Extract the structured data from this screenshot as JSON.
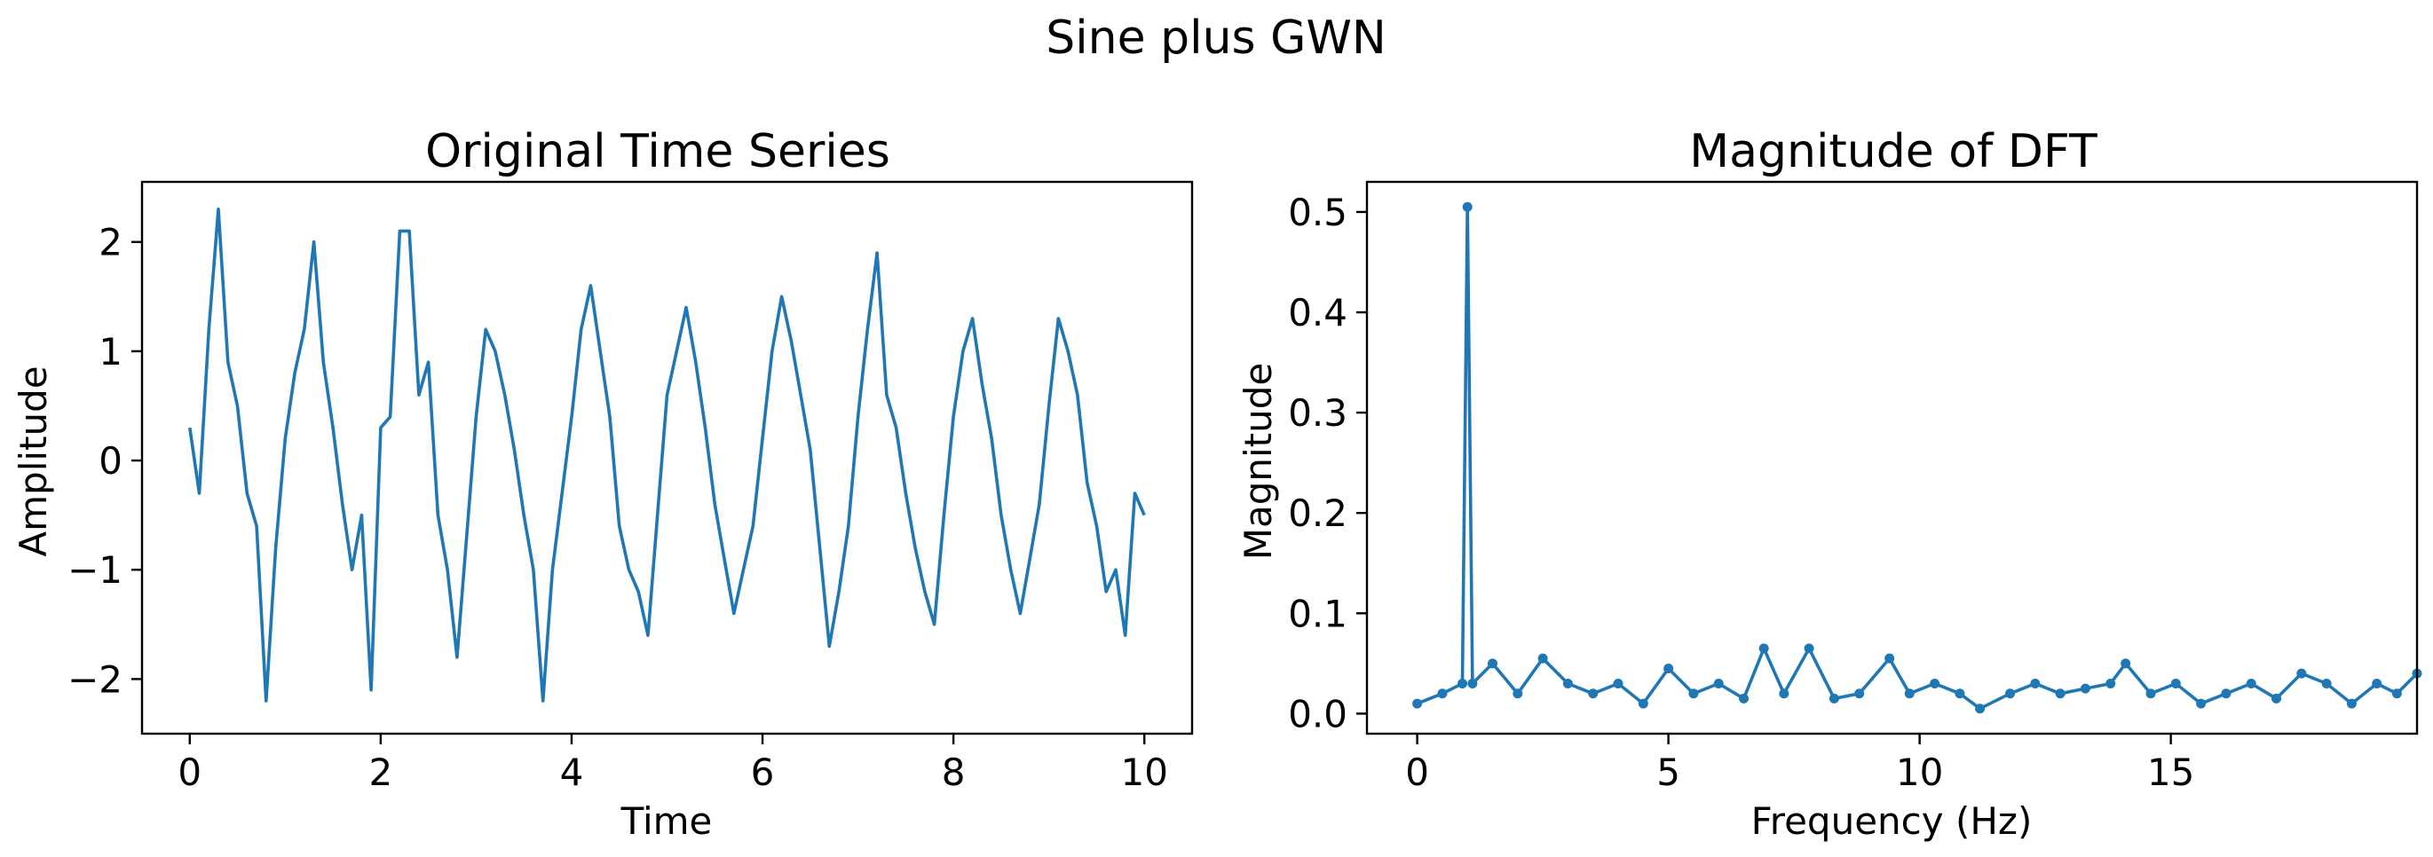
{
  "figure": {
    "suptitle": "Sine plus GWN"
  },
  "colors": {
    "line": "#1f77b4",
    "axes": "#000000",
    "background": "#ffffff"
  },
  "chart_data": [
    {
      "type": "line",
      "title": "Original Time Series",
      "xlabel": "Time",
      "ylabel": "Amplitude",
      "xlim": [
        -0.5,
        10.5
      ],
      "ylim": [
        -2.5,
        2.55
      ],
      "xticks": [
        0,
        2,
        4,
        6,
        8,
        10
      ],
      "xtick_labels": [
        "0",
        "2",
        "4",
        "6",
        "8",
        "10"
      ],
      "yticks": [
        -2,
        -1,
        0,
        1,
        2
      ],
      "ytick_labels": [
        "−2",
        "−1",
        "0",
        "1",
        "2"
      ],
      "grid": false,
      "series": [
        {
          "x": [
            0.0,
            0.1,
            0.2,
            0.3,
            0.4,
            0.5,
            0.6,
            0.7,
            0.8,
            0.9,
            1.0,
            1.1,
            1.2,
            1.3,
            1.4,
            1.5,
            1.6,
            1.7,
            1.8,
            1.9,
            2.0,
            2.1,
            2.2,
            2.3,
            2.4,
            2.5,
            2.6,
            2.7,
            2.8,
            2.9,
            3.0,
            3.1,
            3.2,
            3.3,
            3.4,
            3.5,
            3.6,
            3.7,
            3.8,
            3.9,
            4.0,
            4.1,
            4.2,
            4.3,
            4.4,
            4.5,
            4.6,
            4.7,
            4.8,
            4.9,
            5.0,
            5.1,
            5.2,
            5.3,
            5.4,
            5.5,
            5.6,
            5.7,
            5.8,
            5.9,
            6.0,
            6.1,
            6.2,
            6.3,
            6.4,
            6.5,
            6.6,
            6.7,
            6.8,
            6.9,
            7.0,
            7.1,
            7.2,
            7.3,
            7.4,
            7.5,
            7.6,
            7.7,
            7.8,
            7.9,
            8.0,
            8.1,
            8.2,
            8.3,
            8.4,
            8.5,
            8.6,
            8.7,
            8.8,
            8.9,
            9.0,
            9.1,
            9.2,
            9.3,
            9.4,
            9.5,
            9.6,
            9.7,
            9.8,
            9.9,
            10.0
          ],
          "y": [
            0.3,
            -0.3,
            1.2,
            2.3,
            0.9,
            0.5,
            -0.3,
            -0.6,
            -2.2,
            -0.8,
            0.2,
            0.8,
            1.2,
            2.0,
            0.9,
            0.3,
            -0.4,
            -1.0,
            -0.5,
            -2.1,
            0.3,
            0.4,
            2.1,
            2.1,
            0.6,
            0.9,
            -0.5,
            -1.0,
            -1.8,
            -0.7,
            0.4,
            1.2,
            1.0,
            0.6,
            0.1,
            -0.5,
            -1.0,
            -2.2,
            -1.0,
            -0.3,
            0.4,
            1.2,
            1.6,
            1.0,
            0.4,
            -0.6,
            -1.0,
            -1.2,
            -1.6,
            -0.5,
            0.6,
            1.0,
            1.4,
            0.9,
            0.3,
            -0.4,
            -0.9,
            -1.4,
            -1.0,
            -0.6,
            0.2,
            1.0,
            1.5,
            1.1,
            0.6,
            0.1,
            -0.8,
            -1.7,
            -1.2,
            -0.6,
            0.4,
            1.2,
            1.9,
            0.6,
            0.3,
            -0.3,
            -0.8,
            -1.2,
            -1.5,
            -0.5,
            0.4,
            1.0,
            1.3,
            0.7,
            0.2,
            -0.5,
            -1.0,
            -1.4,
            -0.9,
            -0.4,
            0.5,
            1.3,
            1.0,
            0.6,
            -0.2,
            -0.6,
            -1.2,
            -1.0,
            -1.6,
            -0.3,
            -0.5
          ]
        }
      ]
    },
    {
      "type": "line",
      "title": "Magnitude of DFT",
      "xlabel": "Frequency (Hz)",
      "ylabel": "Magnitude",
      "xlim": [
        -1.0,
        19.9
      ],
      "ylim": [
        -0.02,
        0.53
      ],
      "xticks": [
        0,
        5,
        10,
        15
      ],
      "xtick_labels": [
        "0",
        "5",
        "10",
        "15"
      ],
      "yticks": [
        0.0,
        0.1,
        0.2,
        0.3,
        0.4,
        0.5
      ],
      "ytick_labels": [
        "0.0",
        "0.1",
        "0.2",
        "0.3",
        "0.4",
        "0.5"
      ],
      "grid": false,
      "markers": true,
      "series": [
        {
          "x": [
            0.0,
            0.5,
            0.9,
            1.0,
            1.1,
            1.5,
            2.0,
            2.5,
            3.0,
            3.5,
            4.0,
            4.5,
            5.0,
            5.5,
            6.0,
            6.5,
            6.9,
            7.3,
            7.8,
            8.3,
            8.8,
            9.4,
            9.8,
            10.3,
            10.8,
            11.2,
            11.8,
            12.3,
            12.8,
            13.3,
            13.8,
            14.1,
            14.6,
            15.1,
            15.6,
            16.1,
            16.6,
            17.1,
            17.6,
            18.1,
            18.6,
            19.1,
            19.5,
            19.9
          ],
          "y": [
            0.01,
            0.02,
            0.03,
            0.505,
            0.03,
            0.05,
            0.02,
            0.055,
            0.03,
            0.02,
            0.03,
            0.01,
            0.045,
            0.02,
            0.03,
            0.015,
            0.065,
            0.02,
            0.065,
            0.015,
            0.02,
            0.055,
            0.02,
            0.03,
            0.02,
            0.005,
            0.02,
            0.03,
            0.02,
            0.025,
            0.03,
            0.05,
            0.02,
            0.03,
            0.01,
            0.02,
            0.03,
            0.015,
            0.04,
            0.03,
            0.01,
            0.03,
            0.02,
            0.04
          ]
        }
      ]
    }
  ]
}
